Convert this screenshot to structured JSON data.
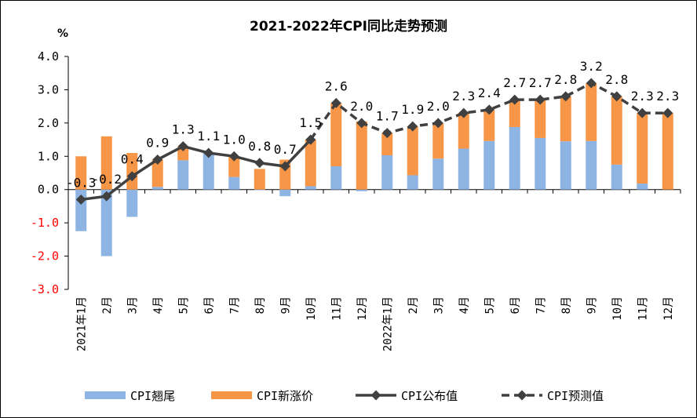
{
  "chart_data": {
    "type": "bar",
    "title": "2021-2022年CPI同比走势预测",
    "unit_label": "%",
    "ylim": [
      -3.0,
      4.0
    ],
    "y_ticks": [
      "4.0",
      "3.0",
      "2.0",
      "1.0",
      "0.0",
      "-1.0",
      "-2.0",
      "-3.0"
    ],
    "x_labels": [
      "2021年1月",
      "2月",
      "3月",
      "4月",
      "5月",
      "6月",
      "7月",
      "8月",
      "9月",
      "10月",
      "11月",
      "12月",
      "2022年1月",
      "2月",
      "3月",
      "4月",
      "5月",
      "6月",
      "7月",
      "8月",
      "9月",
      "10月",
      "11月",
      "12月"
    ],
    "series": [
      {
        "name": "CPI翘尾",
        "values": [
          -1.25,
          -2.0,
          -0.82,
          0.08,
          0.88,
          1.1,
          0.38,
          -0.02,
          -0.2,
          0.1,
          0.7,
          -0.05,
          1.03,
          0.43,
          0.93,
          1.23,
          1.46,
          1.88,
          1.55,
          1.45,
          1.46,
          0.75,
          0.18,
          0.0
        ]
      },
      {
        "name": "CPI新涨价",
        "values": [
          1.0,
          1.6,
          1.1,
          0.82,
          0.42,
          0.0,
          0.62,
          0.62,
          0.9,
          1.4,
          1.9,
          2.05,
          0.67,
          1.47,
          1.07,
          1.07,
          0.94,
          0.82,
          1.15,
          1.35,
          1.74,
          2.05,
          2.12,
          2.3
        ]
      },
      {
        "name": "CPI公布值",
        "values": [
          -0.3,
          -0.2,
          0.4,
          0.9,
          1.3,
          1.1,
          1.0,
          0.8,
          0.7,
          1.5,
          null,
          null,
          null,
          null,
          null,
          null,
          null,
          null,
          null,
          null,
          null,
          null,
          null,
          null
        ]
      },
      {
        "name": "CPI预测值",
        "values": [
          null,
          null,
          null,
          null,
          null,
          null,
          null,
          null,
          null,
          1.5,
          2.6,
          2.0,
          1.7,
          1.9,
          2.0,
          2.3,
          2.4,
          2.7,
          2.7,
          2.8,
          3.2,
          2.8,
          2.3,
          2.3
        ]
      }
    ],
    "data_labels": [
      "-0.3",
      "-0.2",
      "0.4",
      "0.9",
      "1.3",
      "1.1",
      "1.0",
      "0.8",
      "0.7",
      "1.5",
      "2.6",
      "2.0",
      "1.7",
      "1.9",
      "2.0",
      "2.3",
      "2.4",
      "2.7",
      "2.7",
      "2.8",
      "3.2",
      "2.8",
      "2.3",
      "2.3"
    ],
    "colors": {
      "tail": "#8EB4E3",
      "new": "#F79646",
      "line": "#404040",
      "neg_tick": "#FF0000"
    },
    "legend_position": "bottom",
    "grid": false
  }
}
